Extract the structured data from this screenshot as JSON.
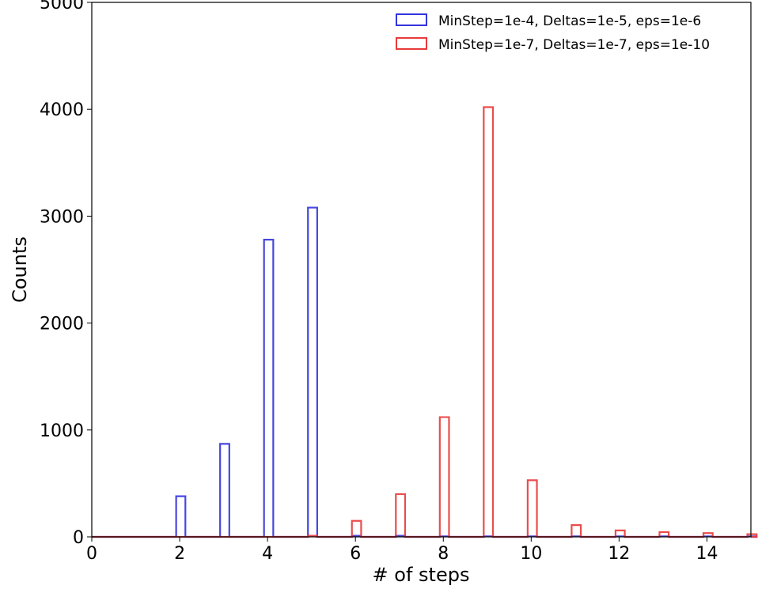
{
  "chart_data": {
    "type": "histogram-step",
    "title": "",
    "xlabel": "# of steps",
    "ylabel": "Counts",
    "xlim": [
      0,
      15
    ],
    "ylim": [
      0,
      5000
    ],
    "xticks": [
      0,
      2,
      4,
      6,
      8,
      10,
      12,
      14
    ],
    "yticks": [
      0,
      1000,
      2000,
      3000,
      4000,
      5000
    ],
    "grid": false,
    "legend_position": "top-right",
    "x": [
      2,
      3,
      4,
      5,
      6,
      7,
      8,
      9,
      10,
      11,
      12,
      13,
      14,
      15
    ],
    "series": [
      {
        "name": "MinStep=1e-4, Deltas=1e-5, eps=1e-6",
        "color": "#3333dd",
        "values": [
          380,
          870,
          2780,
          3080,
          10,
          10,
          5,
          5,
          5,
          5,
          5,
          5,
          5,
          5
        ]
      },
      {
        "name": "MinStep=1e-7, Deltas=1e-7, eps=1e-10",
        "color": "#e83a3a",
        "values": [
          0,
          0,
          0,
          10,
          150,
          400,
          1120,
          4020,
          530,
          110,
          60,
          45,
          35,
          25
        ]
      }
    ]
  }
}
